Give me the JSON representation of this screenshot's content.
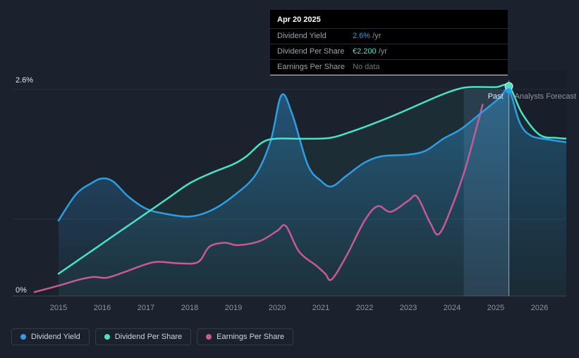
{
  "colors": {
    "background": "#1b222d",
    "tooltip_background": "#000000",
    "dividend_yield": "#2f9de2",
    "dividend_per_share": "#49e2c6",
    "earnings_per_share": "#c65b94",
    "muted": "#6f7680",
    "axis_text": "#8b95a2",
    "past_text": "#e8edf4"
  },
  "tooltip": {
    "date": "Apr 20 2025",
    "rows": [
      {
        "label": "Dividend Yield",
        "value": "2.6%",
        "suffix": " /yr",
        "color_key": "dividend_yield"
      },
      {
        "label": "Dividend Per Share",
        "value": "€2.200",
        "suffix": " /yr",
        "color_key": "dividend_per_share"
      },
      {
        "label": "Earnings Per Share",
        "value": "No data",
        "suffix": "",
        "color_key": "muted"
      }
    ]
  },
  "annotations": {
    "past_label": "Past",
    "forecast_label": "Analysts Forecast"
  },
  "legend": {
    "items": [
      {
        "label": "Dividend Yield",
        "color_key": "dividend_yield"
      },
      {
        "label": "Dividend Per Share",
        "color_key": "dividend_per_share"
      },
      {
        "label": "Earnings Per Share",
        "color_key": "earnings_per_share"
      }
    ]
  },
  "chart_data": {
    "type": "line",
    "x_unit": "year",
    "xlim": [
      2014.35,
      2026.75
    ],
    "ylim": [
      0,
      2.6
    ],
    "y_ticks": [
      {
        "value": 2.6,
        "label": "2.6%"
      },
      {
        "value": 0,
        "label": "0%"
      }
    ],
    "y_gridlines": [
      2.6,
      0.97,
      0
    ],
    "x_ticks": [
      2015,
      2016,
      2017,
      2018,
      2019,
      2020,
      2021,
      2022,
      2023,
      2024,
      2025,
      2026
    ],
    "now_marker": {
      "x": 2025.3,
      "date": "Apr 20 2025"
    },
    "highlight_band": {
      "from": 2024.27,
      "to": 2025.3
    },
    "grid": "horizontal",
    "legend_position": "bottom",
    "series": [
      {
        "name": "Dividend Yield",
        "unit": "%/yr",
        "color": "#2f9de2",
        "current_value": "2.6% /yr",
        "area_fill": true,
        "points": [
          [
            2015.0,
            0.95
          ],
          [
            2015.4,
            1.28
          ],
          [
            2015.75,
            1.42
          ],
          [
            2016.0,
            1.48
          ],
          [
            2016.25,
            1.44
          ],
          [
            2016.6,
            1.25
          ],
          [
            2017.0,
            1.1
          ],
          [
            2017.4,
            1.04
          ],
          [
            2018.0,
            1.0
          ],
          [
            2018.5,
            1.08
          ],
          [
            2019.0,
            1.26
          ],
          [
            2019.5,
            1.52
          ],
          [
            2019.85,
            1.95
          ],
          [
            2020.1,
            2.53
          ],
          [
            2020.35,
            2.28
          ],
          [
            2020.7,
            1.65
          ],
          [
            2021.0,
            1.45
          ],
          [
            2021.25,
            1.38
          ],
          [
            2021.6,
            1.52
          ],
          [
            2022.0,
            1.68
          ],
          [
            2022.4,
            1.76
          ],
          [
            2023.0,
            1.78
          ],
          [
            2023.4,
            1.83
          ],
          [
            2023.8,
            1.98
          ],
          [
            2024.2,
            2.1
          ],
          [
            2024.7,
            2.32
          ],
          [
            2025.1,
            2.5
          ],
          [
            2025.3,
            2.6
          ],
          [
            2025.55,
            2.18
          ],
          [
            2025.8,
            2.02
          ],
          [
            2026.2,
            1.97
          ],
          [
            2026.7,
            1.93
          ]
        ]
      },
      {
        "name": "Dividend Per Share",
        "unit": "EUR/yr",
        "color": "#49e2c6",
        "current_value": "€2.200 /yr",
        "axis_note": "values in shared %-axis units as plotted",
        "points": [
          [
            2015.0,
            0.28
          ],
          [
            2015.5,
            0.47
          ],
          [
            2016.0,
            0.66
          ],
          [
            2016.5,
            0.85
          ],
          [
            2017.0,
            1.04
          ],
          [
            2017.5,
            1.23
          ],
          [
            2018.0,
            1.42
          ],
          [
            2018.5,
            1.55
          ],
          [
            2019.0,
            1.66
          ],
          [
            2019.3,
            1.76
          ],
          [
            2019.65,
            1.93
          ],
          [
            2019.95,
            1.98
          ],
          [
            2020.5,
            1.98
          ],
          [
            2021.2,
            1.99
          ],
          [
            2021.7,
            2.07
          ],
          [
            2022.2,
            2.17
          ],
          [
            2022.7,
            2.28
          ],
          [
            2023.2,
            2.4
          ],
          [
            2023.7,
            2.52
          ],
          [
            2024.1,
            2.6
          ],
          [
            2024.4,
            2.63
          ],
          [
            2025.0,
            2.63
          ],
          [
            2025.3,
            2.64
          ],
          [
            2025.6,
            2.3
          ],
          [
            2026.0,
            2.03
          ],
          [
            2026.4,
            1.99
          ],
          [
            2026.7,
            1.98
          ]
        ]
      },
      {
        "name": "Earnings Per Share",
        "unit": "EUR",
        "color": "#c65b94",
        "current_value": "No data",
        "axis_note": "values in shared %-axis units as plotted",
        "points": [
          [
            2014.45,
            0.05
          ],
          [
            2015.0,
            0.13
          ],
          [
            2015.5,
            0.21
          ],
          [
            2015.8,
            0.24
          ],
          [
            2016.1,
            0.23
          ],
          [
            2016.5,
            0.3
          ],
          [
            2017.0,
            0.4
          ],
          [
            2017.3,
            0.43
          ],
          [
            2017.8,
            0.41
          ],
          [
            2018.2,
            0.43
          ],
          [
            2018.45,
            0.62
          ],
          [
            2018.8,
            0.67
          ],
          [
            2019.1,
            0.64
          ],
          [
            2019.6,
            0.69
          ],
          [
            2020.0,
            0.82
          ],
          [
            2020.2,
            0.88
          ],
          [
            2020.5,
            0.56
          ],
          [
            2020.9,
            0.38
          ],
          [
            2021.1,
            0.28
          ],
          [
            2021.25,
            0.21
          ],
          [
            2021.6,
            0.52
          ],
          [
            2022.0,
            0.95
          ],
          [
            2022.3,
            1.13
          ],
          [
            2022.6,
            1.06
          ],
          [
            2023.0,
            1.2
          ],
          [
            2023.2,
            1.25
          ],
          [
            2023.5,
            0.92
          ],
          [
            2023.7,
            0.78
          ],
          [
            2024.0,
            1.13
          ],
          [
            2024.3,
            1.6
          ],
          [
            2024.55,
            2.1
          ],
          [
            2024.7,
            2.41
          ]
        ]
      }
    ]
  }
}
